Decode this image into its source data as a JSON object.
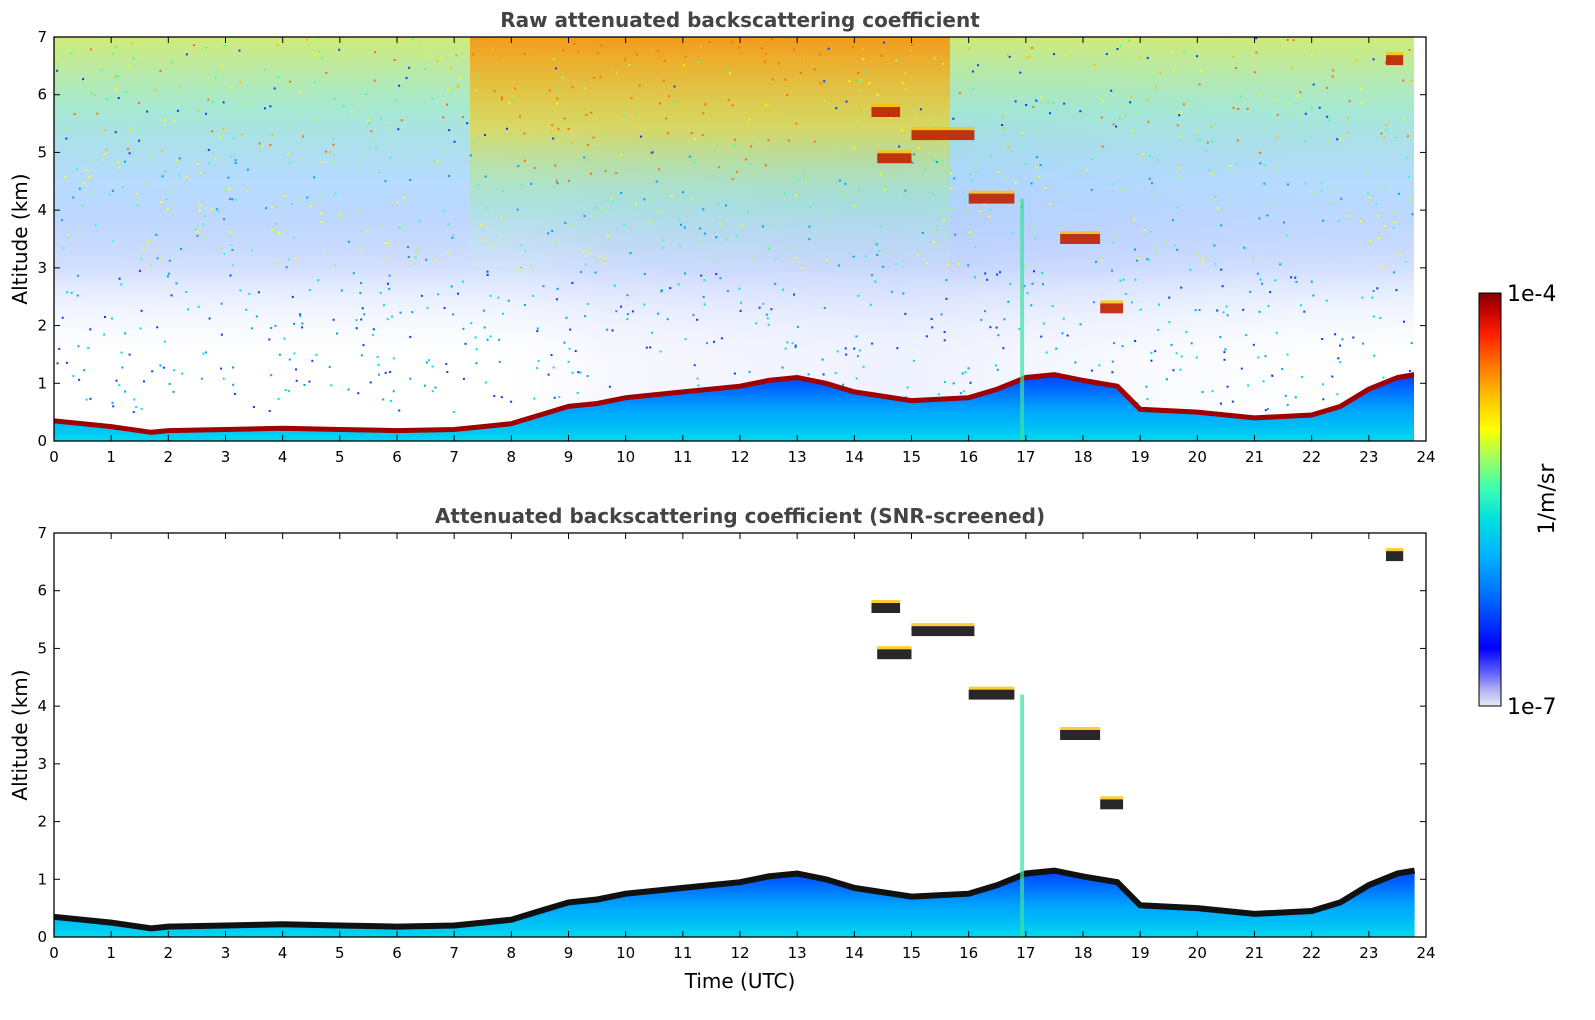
{
  "chart_data": [
    {
      "type": "heatmap",
      "title": "Raw attenuated backscattering coefficient",
      "xlabel": "",
      "ylabel": "Altitude (km)",
      "xlim": [
        0,
        24
      ],
      "ylim": [
        0,
        7
      ],
      "x_ticks": [
        "0",
        "1",
        "2",
        "3",
        "4",
        "5",
        "6",
        "7",
        "8",
        "9",
        "10",
        "11",
        "12",
        "13",
        "14",
        "15",
        "16",
        "17",
        "18",
        "19",
        "20",
        "21",
        "22",
        "23",
        "24"
      ],
      "y_ticks": [
        "0",
        "1",
        "2",
        "3",
        "4",
        "5",
        "6",
        "7"
      ],
      "boundary_layer_top_km": {
        "x": [
          0,
          0.5,
          1,
          1.7,
          2,
          3,
          4,
          5,
          6,
          7,
          7.5,
          8,
          8.5,
          9,
          9.5,
          10,
          11,
          12,
          12.5,
          13,
          13.5,
          14,
          15,
          16,
          16.5,
          17,
          17.5,
          18,
          18.6,
          19,
          20,
          21,
          22,
          22.5,
          23,
          23.5,
          23.8
        ],
        "y": [
          0.35,
          0.3,
          0.25,
          0.15,
          0.18,
          0.2,
          0.22,
          0.2,
          0.18,
          0.2,
          0.25,
          0.3,
          0.45,
          0.6,
          0.65,
          0.75,
          0.85,
          0.95,
          1.05,
          1.1,
          1.0,
          0.85,
          0.7,
          0.75,
          0.9,
          1.1,
          1.15,
          1.05,
          0.95,
          0.55,
          0.5,
          0.4,
          0.45,
          0.6,
          0.9,
          1.1,
          1.15
        ]
      },
      "elevated_cloud_layers": [
        {
          "t_start": 14.3,
          "t_end": 14.8,
          "alt_km": 5.7
        },
        {
          "t_start": 14.4,
          "t_end": 15.0,
          "alt_km": 4.9
        },
        {
          "t_start": 15.0,
          "t_end": 16.1,
          "alt_km": 5.3
        },
        {
          "t_start": 16.0,
          "t_end": 16.8,
          "alt_km": 4.2
        },
        {
          "t_start": 17.6,
          "t_end": 18.3,
          "alt_km": 3.5
        },
        {
          "t_start": 18.3,
          "t_end": 18.7,
          "alt_km": 2.3
        },
        {
          "t_start": 23.3,
          "t_end": 23.6,
          "alt_km": 6.6
        }
      ]
    },
    {
      "type": "heatmap",
      "title": "Attenuated backscattering coefficient (SNR-screened)",
      "xlabel": "Time (UTC)",
      "ylabel": "Altitude (km)",
      "xlim": [
        0,
        24
      ],
      "ylim": [
        0,
        7
      ],
      "x_ticks": [
        "0",
        "1",
        "2",
        "3",
        "4",
        "5",
        "6",
        "7",
        "8",
        "9",
        "10",
        "11",
        "12",
        "13",
        "14",
        "15",
        "16",
        "17",
        "18",
        "19",
        "20",
        "21",
        "22",
        "23",
        "24"
      ],
      "y_ticks": [
        "0",
        "1",
        "2",
        "3",
        "4",
        "5",
        "6",
        "7"
      ]
    }
  ],
  "colorbar": {
    "label": "1/m/sr",
    "max_label": "1e-4",
    "min_label": "1e-7",
    "colors": [
      "#e8e8f8",
      "#b0b0f0",
      "#6060ff",
      "#0000ff",
      "#0060ff",
      "#00b0ff",
      "#00e0e0",
      "#40ffb0",
      "#a0ff60",
      "#ffff00",
      "#ffc000",
      "#ff7000",
      "#ff2000",
      "#c00000",
      "#800000"
    ]
  }
}
